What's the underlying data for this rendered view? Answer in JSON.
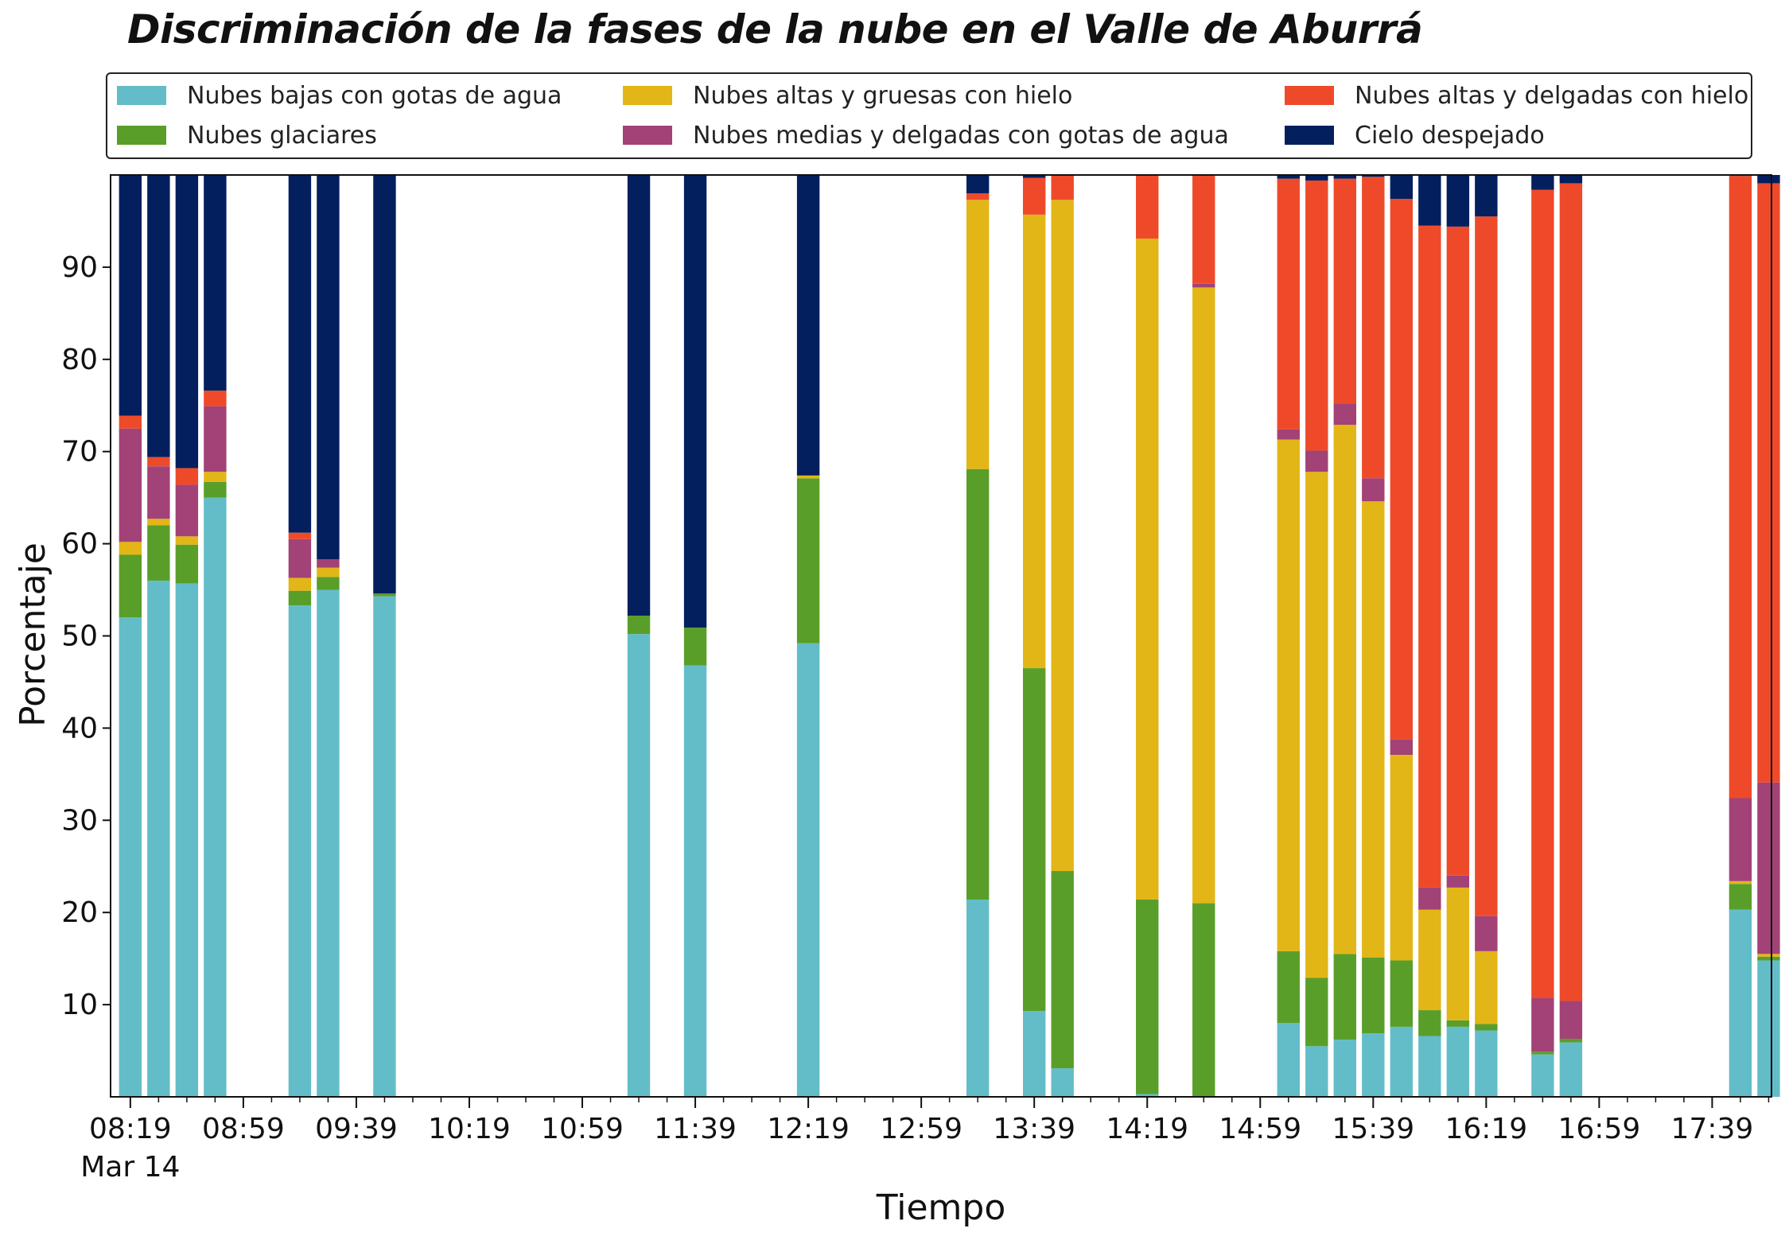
{
  "chart_data": {
    "type": "bar",
    "stacked": true,
    "title": "Discriminación de la fases de la nube en el Valle de Aburrá",
    "xlabel": "Tiempo",
    "ylabel": "Porcentaje",
    "ylim": [
      0,
      100
    ],
    "y_ticks": [
      10,
      20,
      30,
      40,
      50,
      60,
      70,
      80,
      90
    ],
    "x_range": [
      "08:12",
      "18:00"
    ],
    "x_tick_labels": [
      "08:19",
      "08:59",
      "09:39",
      "10:19",
      "10:59",
      "11:39",
      "12:19",
      "12:59",
      "13:39",
      "14:19",
      "14:59",
      "15:39",
      "16:19",
      "16:59",
      "17:39"
    ],
    "x_date_label": "Mar 14",
    "legend_position": "top",
    "grid": false,
    "series": [
      {
        "name": "Nubes bajas con gotas de agua",
        "color": "#63BDC9"
      },
      {
        "name": "Nubes glaciares",
        "color": "#5A9E2A"
      },
      {
        "name": "Nubes altas y gruesas con hielo",
        "color": "#E2B616"
      },
      {
        "name": "Nubes medias y delgadas con gotas de agua",
        "color": "#A24277"
      },
      {
        "name": "Nubes altas y delgadas con hielo",
        "color": "#EE4A2A"
      },
      {
        "name": "Cielo despejado",
        "color": "#031F5E"
      }
    ],
    "bars": [
      {
        "time": "08:19",
        "values": [
          52.0,
          6.8,
          1.4,
          12.3,
          1.4,
          26.1
        ]
      },
      {
        "time": "08:29",
        "values": [
          56.0,
          6.0,
          0.7,
          5.7,
          1.0,
          30.6
        ]
      },
      {
        "time": "08:39",
        "values": [
          55.7,
          4.2,
          0.9,
          5.6,
          1.8,
          31.8
        ]
      },
      {
        "time": "08:49",
        "values": [
          65.0,
          1.7,
          1.1,
          7.1,
          1.7,
          23.4
        ]
      },
      {
        "time": "09:19",
        "values": [
          53.3,
          1.6,
          1.4,
          4.2,
          0.7,
          38.8
        ]
      },
      {
        "time": "09:29",
        "values": [
          55.0,
          1.4,
          1.0,
          0.9,
          0.0,
          41.7
        ]
      },
      {
        "time": "09:49",
        "values": [
          54.3,
          0.3,
          0.0,
          0.0,
          0.0,
          45.4
        ]
      },
      {
        "time": "11:19",
        "values": [
          50.2,
          2.0,
          0.0,
          0.0,
          0.0,
          47.8
        ]
      },
      {
        "time": "11:39",
        "values": [
          46.8,
          4.1,
          0.0,
          0.0,
          0.0,
          49.1
        ]
      },
      {
        "time": "12:19",
        "values": [
          49.2,
          17.9,
          0.3,
          0.0,
          0.0,
          32.6
        ]
      },
      {
        "time": "13:19",
        "values": [
          21.4,
          46.7,
          29.2,
          0.0,
          0.7,
          2.0
        ]
      },
      {
        "time": "13:39",
        "values": [
          9.3,
          37.2,
          49.2,
          0.0,
          4.0,
          0.3
        ]
      },
      {
        "time": "13:49",
        "values": [
          3.1,
          21.4,
          72.8,
          0.0,
          2.7,
          0.0
        ]
      },
      {
        "time": "14:19",
        "values": [
          0.3,
          21.1,
          71.7,
          0.0,
          6.9,
          0.0
        ]
      },
      {
        "time": "14:39",
        "values": [
          0.0,
          21.0,
          66.8,
          0.4,
          11.8,
          0.0
        ]
      },
      {
        "time": "15:09",
        "values": [
          8.0,
          7.8,
          55.5,
          1.1,
          27.2,
          0.4
        ]
      },
      {
        "time": "15:19",
        "values": [
          5.5,
          7.4,
          54.9,
          2.3,
          29.3,
          0.6
        ]
      },
      {
        "time": "15:29",
        "values": [
          6.2,
          9.3,
          57.4,
          2.3,
          24.4,
          0.4
        ]
      },
      {
        "time": "15:39",
        "values": [
          6.9,
          8.2,
          49.5,
          2.5,
          32.7,
          0.2
        ]
      },
      {
        "time": "15:49",
        "values": [
          7.6,
          7.2,
          22.3,
          1.7,
          58.6,
          2.6
        ]
      },
      {
        "time": "15:59",
        "values": [
          6.6,
          2.8,
          10.9,
          2.4,
          71.8,
          5.5
        ]
      },
      {
        "time": "16:09",
        "values": [
          7.6,
          0.7,
          14.4,
          1.3,
          70.4,
          5.6
        ]
      },
      {
        "time": "16:19",
        "values": [
          7.2,
          0.7,
          7.9,
          3.8,
          75.9,
          4.5
        ]
      },
      {
        "time": "16:39",
        "values": [
          4.6,
          0.3,
          0.0,
          5.8,
          87.7,
          1.6
        ]
      },
      {
        "time": "16:49",
        "values": [
          5.9,
          0.4,
          0.0,
          4.1,
          88.7,
          0.9
        ]
      },
      {
        "time": "17:49",
        "values": [
          20.3,
          2.8,
          0.3,
          9.0,
          67.5,
          0.1
        ]
      },
      {
        "time": "17:59",
        "values": [
          14.8,
          0.4,
          0.3,
          18.6,
          65.0,
          0.9
        ]
      }
    ]
  }
}
